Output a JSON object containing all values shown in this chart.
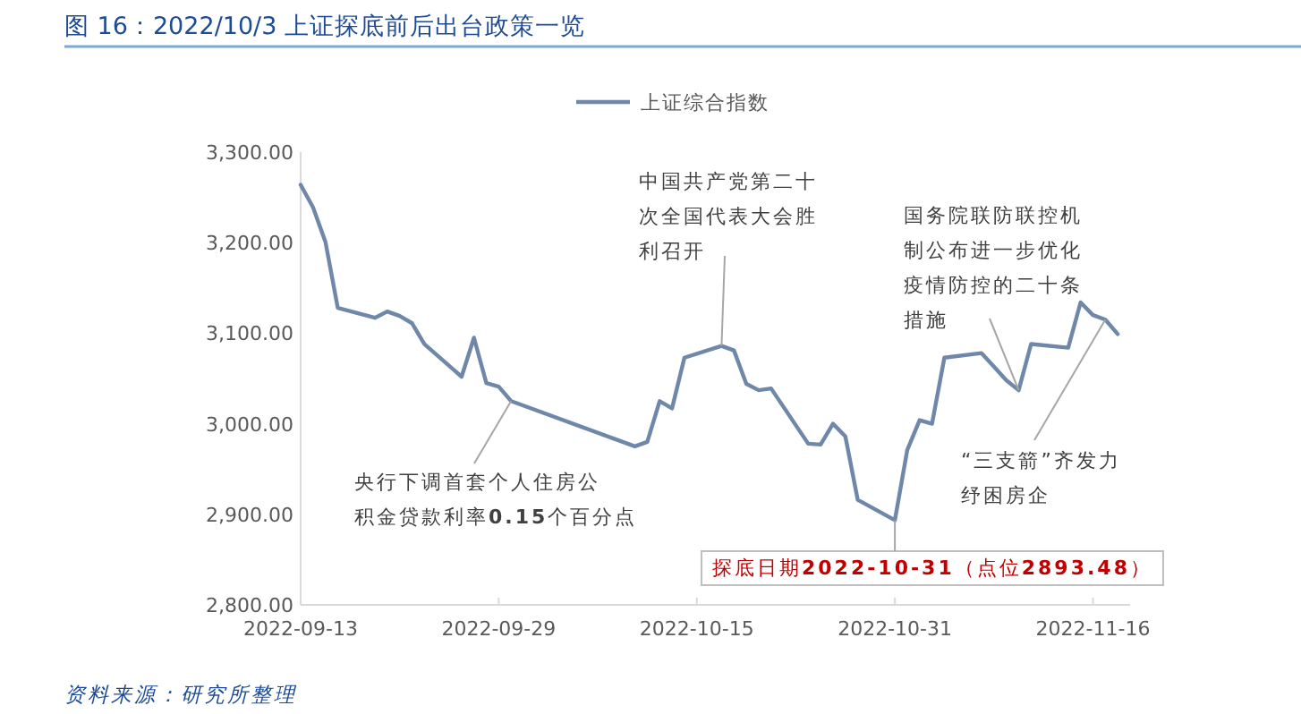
{
  "chart_data": {
    "type": "line",
    "title": "图 16：2022/10/3 上证探底前后出台政策一览",
    "x": [
      "2022-09-13",
      "2022-09-14",
      "2022-09-15",
      "2022-09-16",
      "2022-09-19",
      "2022-09-20",
      "2022-09-21",
      "2022-09-22",
      "2022-09-23",
      "2022-09-26",
      "2022-09-27",
      "2022-09-28",
      "2022-09-29",
      "2022-09-30",
      "2022-10-10",
      "2022-10-11",
      "2022-10-12",
      "2022-10-13",
      "2022-10-14",
      "2022-10-17",
      "2022-10-18",
      "2022-10-19",
      "2022-10-20",
      "2022-10-21",
      "2022-10-24",
      "2022-10-25",
      "2022-10-26",
      "2022-10-27",
      "2022-10-28",
      "2022-10-31",
      "2022-11-01",
      "2022-11-02",
      "2022-11-03",
      "2022-11-04",
      "2022-11-07",
      "2022-11-08",
      "2022-11-09",
      "2022-11-10",
      "2022-11-11",
      "2022-11-14",
      "2022-11-15",
      "2022-11-16",
      "2022-11-17",
      "2022-11-18"
    ],
    "series": [
      {
        "name": "上证综合指数",
        "color": "#6f87a8",
        "values": [
          3264,
          3239,
          3201,
          3128,
          3117,
          3124,
          3119,
          3111,
          3088,
          3052,
          3095,
          3045,
          3041,
          3025,
          2975,
          2980,
          3025,
          3017,
          3073,
          3086,
          3081,
          3044,
          3037,
          3039,
          2978,
          2977,
          3000,
          2986,
          2916,
          2893.48,
          2971,
          3004,
          3000,
          3073,
          3078,
          3063,
          3048,
          3037,
          3088,
          3084,
          3134,
          3120,
          3115,
          3099
        ]
      }
    ],
    "xlim": [
      "2022-09-13",
      "2022-11-19"
    ],
    "xticks": [
      "2022-09-13",
      "2022-09-29",
      "2022-10-15",
      "2022-10-31",
      "2022-11-16"
    ],
    "ylim": [
      2800,
      3300
    ],
    "yticks": [
      {
        "value": 2800,
        "label": "2,800.00"
      },
      {
        "value": 2900,
        "label": "2,900.00"
      },
      {
        "value": 3000,
        "label": "3,000.00"
      },
      {
        "value": 3100,
        "label": "3,100.00"
      },
      {
        "value": 3200,
        "label": "3,200.00"
      },
      {
        "value": 3300,
        "label": "3,300.00"
      }
    ],
    "legend": "top",
    "grid": false,
    "annotations": [
      {
        "text": "央行下调首套个人住房公积金贷款利率0.15个百分点",
        "x": "2022-09-30",
        "y": 3025
      },
      {
        "text": "中国共产党第二十次全国代表大会胜利召开",
        "x": "2022-10-17",
        "y": 3086
      },
      {
        "text": "国务院联防联控机制公布进一步优化疫情防控的二十条措施",
        "x": "2022-11-10",
        "y": 3037
      },
      {
        "text": "“三支箭”齐发力纾困房企",
        "x": "2022-11-17",
        "y": 3115
      },
      {
        "text": "探底日期2022-10-31（点位2893.48）",
        "x": "2022-10-31",
        "y": 2893.48
      },
      "资料来源：研究所整理"
    ]
  }
}
